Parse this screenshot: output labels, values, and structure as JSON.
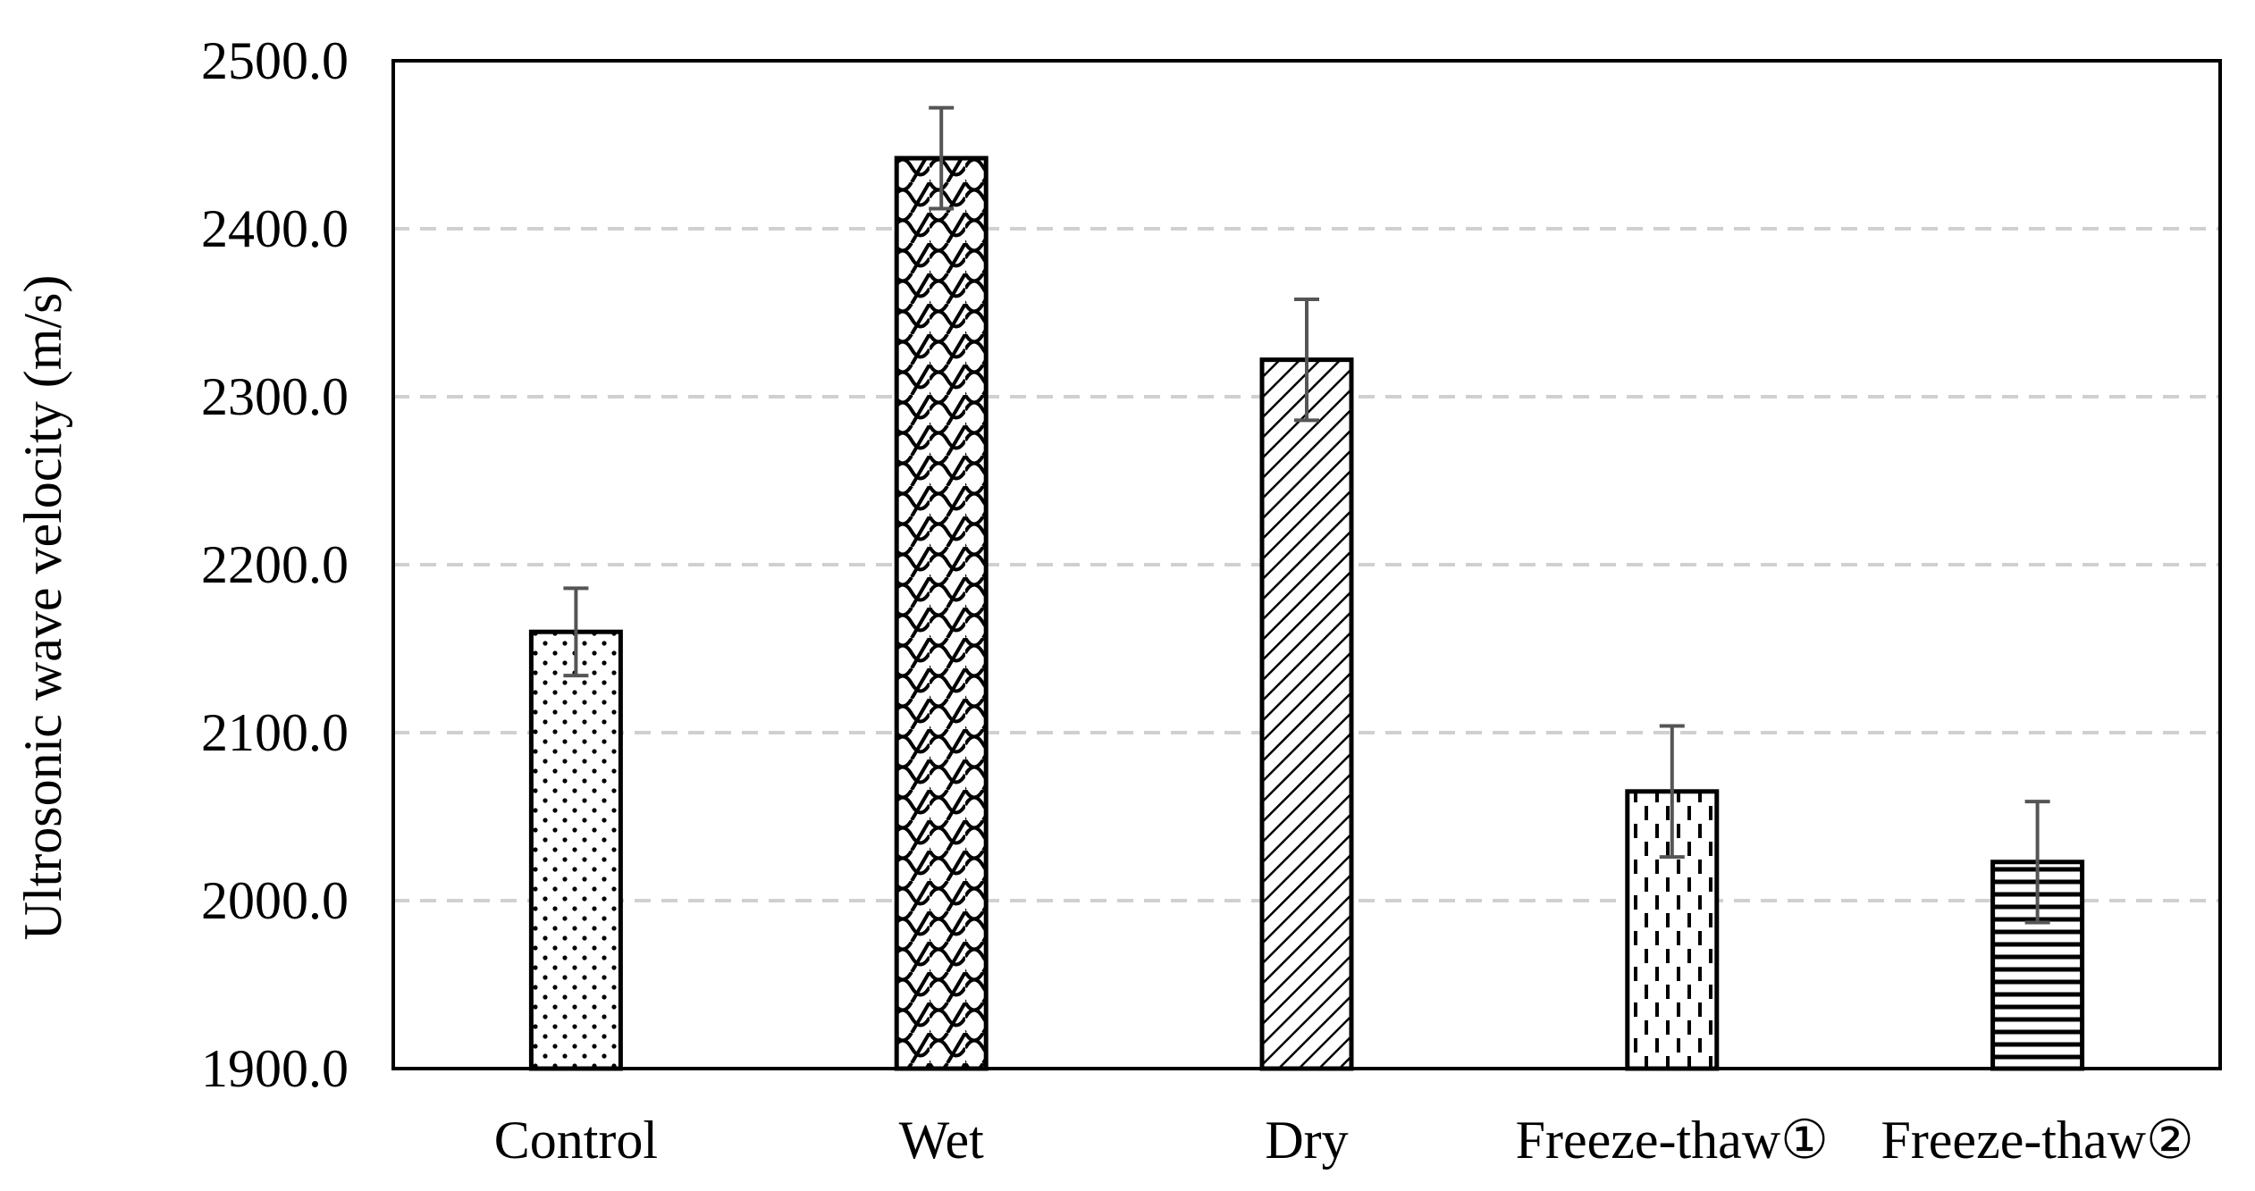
{
  "chart_data": {
    "type": "bar",
    "title": "",
    "xlabel": "",
    "ylabel": "Ultrosonic wave velocity (m/s)",
    "ylim": [
      1900.0,
      2500.0
    ],
    "yticks": [
      "1900.0",
      "2000.0",
      "2100.0",
      "2200.0",
      "2300.0",
      "2400.0",
      "2500.0"
    ],
    "grid": "horizontal dashed",
    "categories": [
      "Control",
      "Wet",
      "Dry",
      "Freeze-thaw①",
      "Freeze-thaw②"
    ],
    "values": [
      2160,
      2442,
      2322,
      2065,
      2023
    ],
    "error": [
      26,
      30,
      36,
      39,
      36
    ],
    "patterns": [
      "dots",
      "scales",
      "diagonal-hatch",
      "vertical-dashes",
      "horizontal-lines"
    ]
  }
}
